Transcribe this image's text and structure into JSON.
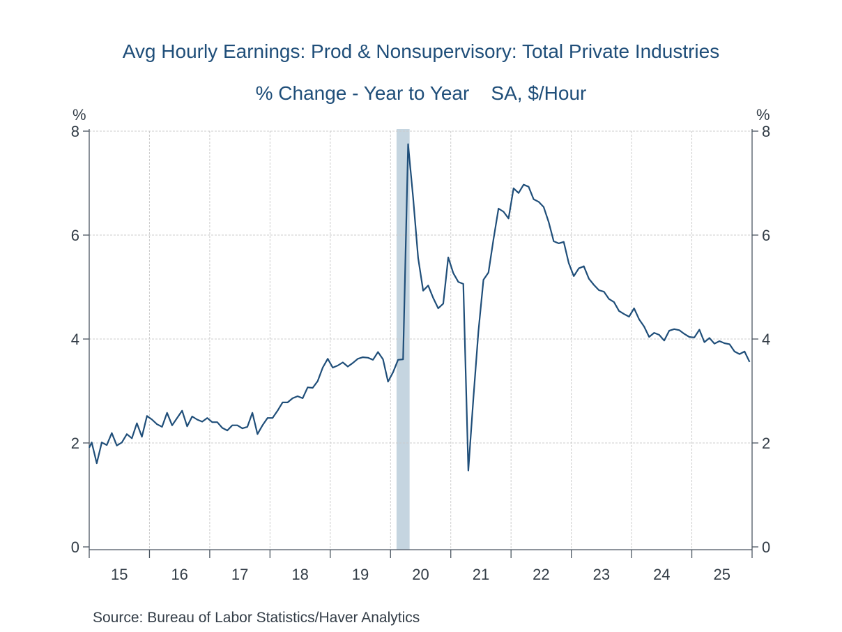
{
  "header": {
    "title": "Avg Hourly Earnings: Prod & Nonsupervisory: Total Private Industries",
    "subtitle": "% Change - Year to Year    SA, $/Hour"
  },
  "footer": {
    "source": "Source:  Bureau of Labor Statistics/Haver Analytics"
  },
  "colors": {
    "line": "#1f4e79",
    "recession": "#c5d5e0",
    "grid": "#cccccc",
    "axis": "#4a5560",
    "title": "#1f4e79"
  },
  "chart_data": {
    "type": "line",
    "title": "Avg Hourly Earnings: Prod & Nonsupervisory: Total Private Industries",
    "subtitle": "% Change - Year to Year    SA, $/Hour",
    "xlabel": "",
    "ylabel_left": "%",
    "ylabel_right": "%",
    "ylim": [
      0,
      8
    ],
    "yticks": [
      0,
      2,
      4,
      6,
      8
    ],
    "x_start": "2015-01",
    "frequency": "monthly",
    "xtick_labels": [
      "15",
      "16",
      "17",
      "18",
      "19",
      "20",
      "21",
      "22",
      "23",
      "24",
      "25"
    ],
    "grid": true,
    "recession_shading": [
      {
        "start": "2020-02",
        "end": "2020-04"
      }
    ],
    "series": [
      {
        "name": "Avg Hourly Earnings: Prod & Nonsupervisory: Total Private Industries",
        "values": [
          2.01,
          1.61,
          2.01,
          1.96,
          2.19,
          1.95,
          2.01,
          2.17,
          2.09,
          2.38,
          2.12,
          2.52,
          2.45,
          2.36,
          2.31,
          2.58,
          2.34,
          2.48,
          2.62,
          2.32,
          2.51,
          2.45,
          2.41,
          2.48,
          2.4,
          2.4,
          2.29,
          2.24,
          2.34,
          2.34,
          2.28,
          2.31,
          2.58,
          2.17,
          2.34,
          2.48,
          2.48,
          2.62,
          2.78,
          2.78,
          2.86,
          2.9,
          2.86,
          3.07,
          3.06,
          3.19,
          3.45,
          3.62,
          3.45,
          3.49,
          3.55,
          3.47,
          3.54,
          3.62,
          3.65,
          3.64,
          3.6,
          3.75,
          3.61,
          3.18,
          3.36,
          3.6,
          3.61,
          7.75,
          6.72,
          5.56,
          4.93,
          5.03,
          4.79,
          4.59,
          4.68,
          5.57,
          5.27,
          5.1,
          5.06,
          1.47,
          2.85,
          4.15,
          5.14,
          5.28,
          5.92,
          6.51,
          6.45,
          6.32,
          6.9,
          6.81,
          6.97,
          6.93,
          6.69,
          6.64,
          6.54,
          6.25,
          5.88,
          5.84,
          5.87,
          5.46,
          5.21,
          5.36,
          5.4,
          5.16,
          5.04,
          4.94,
          4.91,
          4.77,
          4.71,
          4.54,
          4.48,
          4.43,
          4.59,
          4.38,
          4.24,
          4.04,
          4.12,
          4.08,
          3.97,
          4.16,
          4.19,
          4.17,
          4.1,
          4.04,
          4.03,
          4.18,
          3.94,
          4.02,
          3.91,
          3.96,
          3.92,
          3.9,
          3.76,
          3.71,
          3.76,
          3.56
        ]
      }
    ]
  }
}
